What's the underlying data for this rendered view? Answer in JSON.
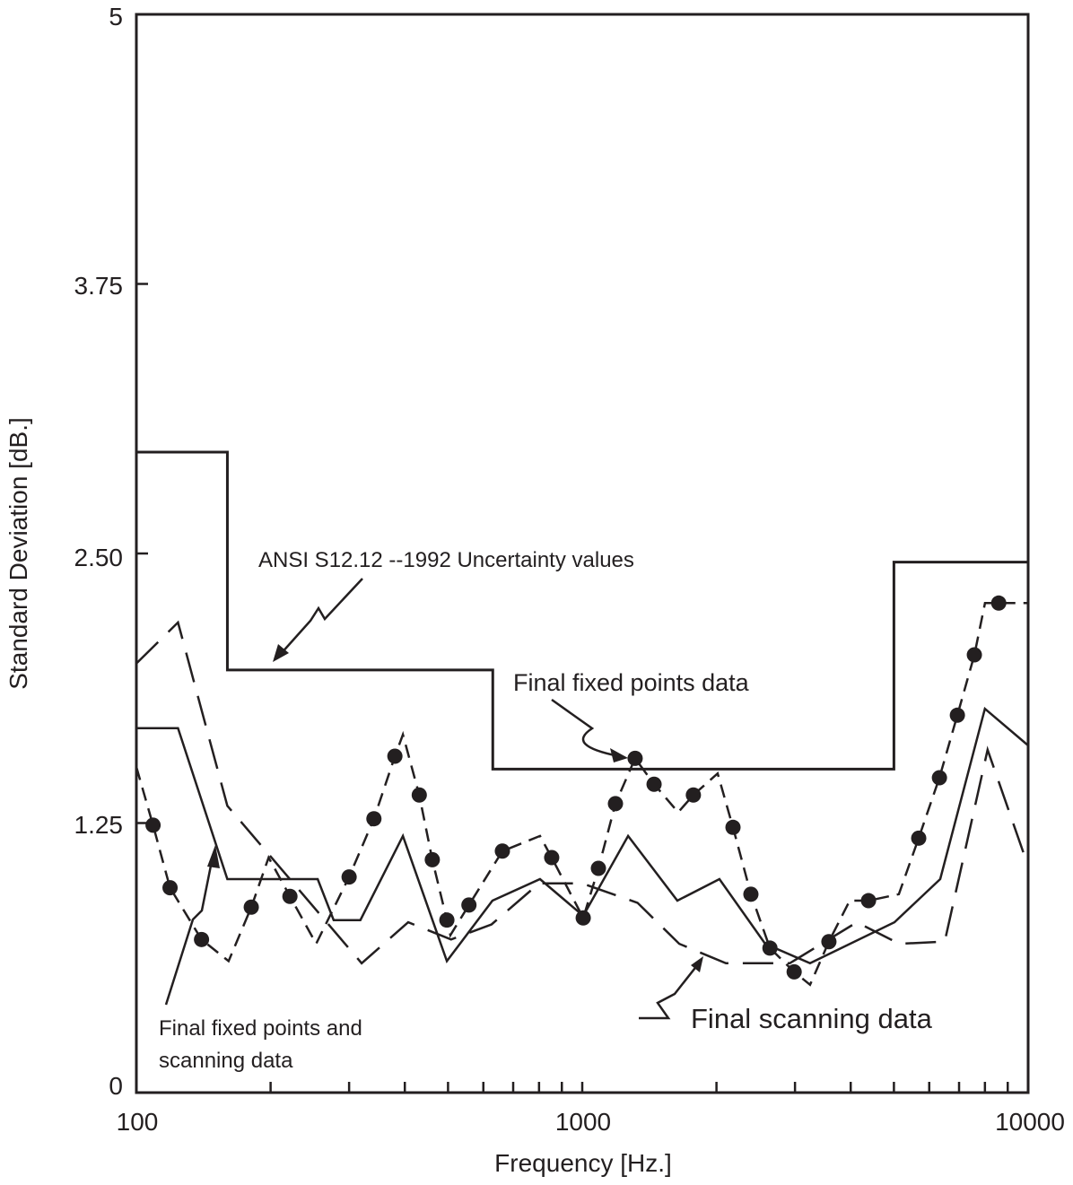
{
  "chart_data": {
    "type": "line",
    "title": "",
    "xlabel": "Frequency [Hz.]",
    "ylabel": "Standard Deviation [dB.]",
    "xscale": "log",
    "xlim": [
      100,
      10000
    ],
    "ylim": [
      0,
      5
    ],
    "xticks": [
      "100",
      "1000",
      "10000"
    ],
    "yticks": [
      "0",
      "1.25",
      "2.50",
      "3.75",
      "5"
    ],
    "grid": false,
    "color": "#231f20",
    "annotations": {
      "ansi": "ANSI S12.12 --1992 Uncertainty values",
      "fixed": "Final fixed points data",
      "both_line1": "Final fixed points and",
      "both_line2": "scanning data",
      "scanning": "Final scanning data"
    },
    "series": [
      {
        "id": "ansi",
        "style": "solid-step",
        "steps": [
          [
            100,
            160,
            2.97
          ],
          [
            160,
            630,
            1.96
          ],
          [
            630,
            5000,
            1.5
          ],
          [
            5000,
            10000,
            2.46
          ]
        ]
      },
      {
        "id": "fixed_and_scanning",
        "style": "solid",
        "x": [
          100,
          124,
          160,
          255,
          277,
          318,
          396,
          497,
          629,
          804,
          1005,
          1267,
          1634,
          2031,
          2572,
          3243,
          5014,
          6350,
          8000,
          10000
        ],
        "y": [
          1.69,
          1.69,
          0.99,
          0.99,
          0.8,
          0.8,
          1.19,
          0.61,
          0.89,
          0.99,
          0.82,
          1.19,
          0.89,
          0.99,
          0.69,
          0.6,
          0.79,
          0.99,
          1.78,
          1.61
        ]
      },
      {
        "id": "scanning",
        "style": "long-dash",
        "x": [
          100,
          124,
          160,
          320,
          407,
          508,
          626,
          800,
          1000,
          1330,
          1650,
          2100,
          2920,
          4130,
          5140,
          6500,
          8110,
          10000
        ],
        "y": [
          1.99,
          2.18,
          1.33,
          0.6,
          0.79,
          0.71,
          0.78,
          0.97,
          0.97,
          0.88,
          0.69,
          0.6,
          0.6,
          0.79,
          0.69,
          0.7,
          1.59,
          1.05
        ]
      },
      {
        "id": "fixed_points",
        "style": "short-dash-with-dots",
        "x": [
          100,
          109,
          119,
          140,
          161,
          181,
          198,
          221,
          253,
          300,
          341,
          380,
          396,
          431,
          461,
          497,
          506,
          557,
          662,
          804,
          854,
          1005,
          1087,
          1187,
          1314,
          1449,
          1641,
          1775,
          2012,
          2178,
          2389,
          2636,
          2987,
          3243,
          3574,
          3979,
          4385,
          5130,
          5683,
          6325,
          6939,
          7575,
          8003,
          8590,
          10000
        ],
        "y": [
          1.51,
          1.24,
          0.95,
          0.71,
          0.61,
          0.86,
          1.09,
          0.91,
          0.69,
          1.0,
          1.27,
          1.56,
          1.66,
          1.38,
          1.08,
          0.8,
          0.73,
          0.87,
          1.12,
          1.19,
          1.09,
          0.81,
          1.04,
          1.34,
          1.55,
          1.43,
          1.3,
          1.38,
          1.48,
          1.23,
          0.92,
          0.67,
          0.56,
          0.5,
          0.7,
          0.89,
          0.89,
          0.92,
          1.18,
          1.46,
          1.75,
          2.03,
          2.27,
          2.27,
          2.27
        ],
        "marker": [
          0,
          1,
          1,
          1,
          0,
          1,
          0,
          1,
          0,
          1,
          1,
          1,
          0,
          1,
          1,
          1,
          0,
          1,
          1,
          0,
          1,
          1,
          1,
          1,
          1,
          1,
          0,
          1,
          0,
          1,
          1,
          1,
          1,
          0,
          1,
          0,
          1,
          0,
          1,
          1,
          1,
          1,
          0,
          1,
          0
        ]
      }
    ]
  }
}
